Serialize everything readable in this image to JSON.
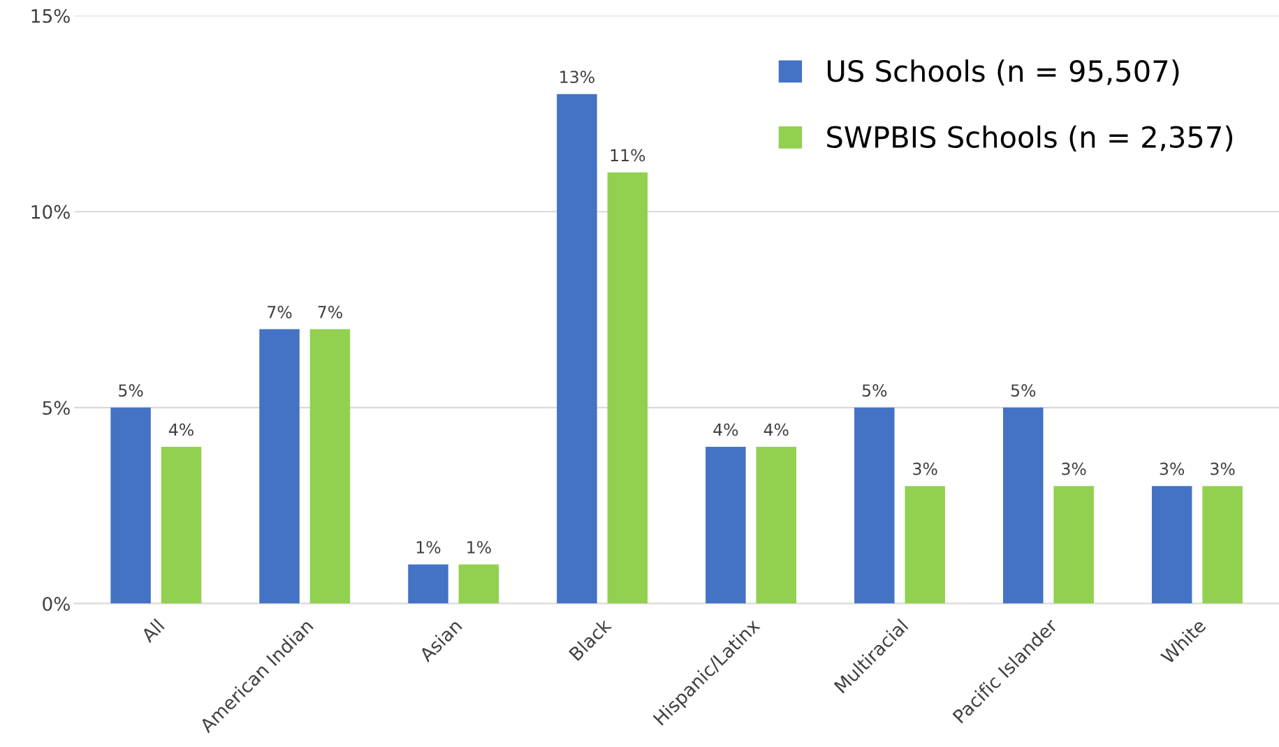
{
  "chart_data": {
    "type": "bar",
    "categories": [
      "All",
      "American Indian",
      "Asian",
      "Black",
      "Hispanic/Latinx",
      "Multiracial",
      "Pacific Islander",
      "White"
    ],
    "series": [
      {
        "name": "US Schools (n = 95,507)",
        "color": "#4472c4",
        "values": [
          5,
          7,
          1,
          13,
          4,
          5,
          5,
          3
        ]
      },
      {
        "name": "SWPBIS Schools (n = 2,357)",
        "color": "#92d050",
        "values": [
          4,
          7,
          1,
          11,
          4,
          3,
          3,
          3
        ]
      }
    ],
    "value_labels": [
      [
        "5%",
        "7%",
        "1%",
        "13%",
        "4%",
        "5%",
        "5%",
        "3%"
      ],
      [
        "4%",
        "7%",
        "1%",
        "11%",
        "4%",
        "3%",
        "3%",
        "3%"
      ]
    ],
    "ylim": [
      0,
      15
    ],
    "yticks": [
      {
        "value": 0,
        "label": "0%"
      },
      {
        "value": 5,
        "label": "5%"
      },
      {
        "value": 10,
        "label": "10%"
      },
      {
        "value": 15,
        "label": "15%"
      }
    ],
    "grid": "y",
    "legend": "top right"
  }
}
